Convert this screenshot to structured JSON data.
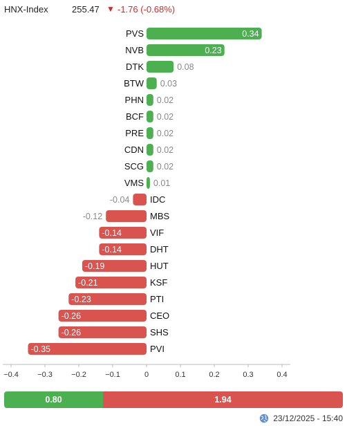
{
  "header": {
    "index_name": "HNX-Index",
    "index_value": "255.47",
    "arrow": "▼",
    "change": "-1.76 (-0.68%)"
  },
  "chart_data": {
    "type": "bar",
    "orientation": "horizontal",
    "categories": [
      "PVS",
      "NVB",
      "DTK",
      "BTW",
      "PHN",
      "BCF",
      "PRE",
      "CDN",
      "SCG",
      "VMS",
      "IDC",
      "MBS",
      "VIF",
      "DHT",
      "HUT",
      "KSF",
      "PTI",
      "CEO",
      "SHS",
      "PVI"
    ],
    "values": [
      0.34,
      0.23,
      0.08,
      0.03,
      0.02,
      0.02,
      0.02,
      0.02,
      0.02,
      0.01,
      -0.04,
      -0.12,
      -0.14,
      -0.14,
      -0.19,
      -0.21,
      -0.23,
      -0.26,
      -0.26,
      -0.35
    ],
    "labels": [
      "0.34",
      "0.23",
      "0.08",
      "0.03",
      "0.02",
      "0.02",
      "0.02",
      "0.02",
      "0.02",
      "0.01",
      "-0.04",
      "-0.12",
      "-0.14",
      "-0.14",
      "-0.19",
      "-0.21",
      "-0.23",
      "-0.26",
      "-0.26",
      "-0.35"
    ],
    "xlim": [
      -0.4,
      0.4
    ],
    "xticks": [
      -0.4,
      -0.3,
      -0.2,
      -0.1,
      0,
      0.1,
      0.2,
      0.3,
      0.4
    ],
    "xtick_labels": [
      "−0.4",
      "−0.3",
      "−0.2",
      "−0.1",
      "0",
      "0.1",
      "0.2",
      "0.3",
      "0.4"
    ],
    "colors": {
      "positive": "#4caf50",
      "negative": "#d9534f"
    },
    "grid": false,
    "legend": "none"
  },
  "summary_bar": {
    "positive_value": 0.8,
    "positive_label": "0.80",
    "negative_value": 1.94,
    "negative_label": "1.94",
    "positive_color": "#4caf50",
    "negative_color": "#d9534f"
  },
  "footer": {
    "timestamp": "23/12/2025 - 15:40",
    "icon": "globe-icon"
  }
}
